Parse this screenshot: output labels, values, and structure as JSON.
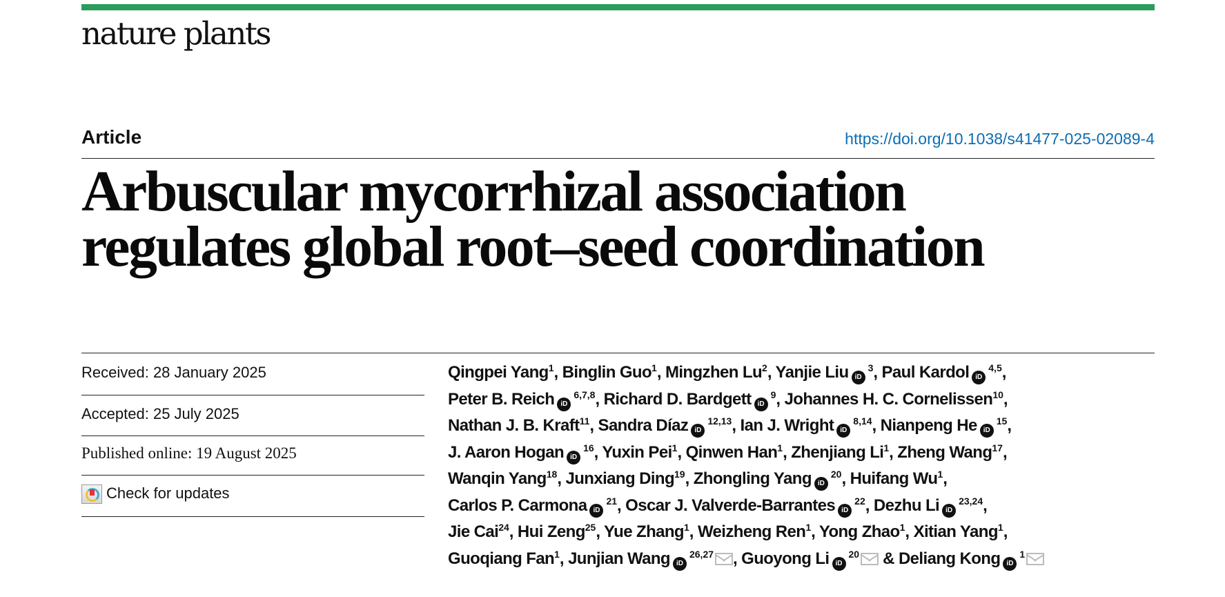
{
  "journal": {
    "name": "nature plants",
    "brand_color": "#2a9d5c"
  },
  "article_type": "Article",
  "doi": {
    "label": "https://doi.org/10.1038/s41477-025-02089-4",
    "color": "#0c6eb3"
  },
  "title": {
    "line1": "Arbuscular mycorrhizal association",
    "line2": "regulates global root–seed coordination"
  },
  "meta": {
    "received": "Received: 28 January 2025",
    "accepted": "Accepted: 25 July 2025",
    "published": "Published online: 19 August 2025",
    "check_updates": "Check for updates"
  },
  "orcid_label": "iD",
  "author_lines": [
    [
      {
        "name": "Qingpei Yang",
        "sup": "1",
        "after": ", "
      },
      {
        "name": "Binglin Guo",
        "sup": "1",
        "after": ", "
      },
      {
        "name": "Mingzhen Lu",
        "sup": "2",
        "after": ", "
      },
      {
        "name": "Yanjie Liu",
        "orcid": true,
        "sup": "3",
        "after": ", "
      },
      {
        "name": "Paul Kardol",
        "orcid": true,
        "sup": "4,5",
        "after": ","
      }
    ],
    [
      {
        "name": "Peter B. Reich",
        "orcid": true,
        "sup": "6,7,8",
        "after": ", "
      },
      {
        "name": "Richard D. Bardgett",
        "orcid": true,
        "sup": "9",
        "after": ", "
      },
      {
        "name": "Johannes H. C. Cornelissen",
        "sup": "10",
        "after": ","
      }
    ],
    [
      {
        "name": "Nathan J. B. Kraft",
        "sup": "11",
        "after": ", "
      },
      {
        "name": "Sandra Díaz",
        "orcid": true,
        "sup": "12,13",
        "after": ", "
      },
      {
        "name": "Ian J. Wright",
        "orcid": true,
        "sup": "8,14",
        "after": ", "
      },
      {
        "name": "Nianpeng He",
        "orcid": true,
        "sup": "15",
        "after": ","
      }
    ],
    [
      {
        "name": "J. Aaron Hogan",
        "orcid": true,
        "sup": "16",
        "after": ", "
      },
      {
        "name": "Yuxin Pei",
        "sup": "1",
        "after": ", "
      },
      {
        "name": "Qinwen Han",
        "sup": "1",
        "after": ", "
      },
      {
        "name": "Zhenjiang Li",
        "sup": "1",
        "after": ", "
      },
      {
        "name": "Zheng Wang",
        "sup": "17",
        "after": ","
      }
    ],
    [
      {
        "name": "Wanqin Yang",
        "sup": "18",
        "after": ", "
      },
      {
        "name": "Junxiang Ding",
        "sup": "19",
        "after": ", "
      },
      {
        "name": "Zhongling Yang",
        "orcid": true,
        "sup": "20",
        "after": ", "
      },
      {
        "name": "Huifang Wu",
        "sup": "1",
        "after": ","
      }
    ],
    [
      {
        "name": "Carlos P. Carmona",
        "orcid": true,
        "sup": "21",
        "after": ", "
      },
      {
        "name": "Oscar J. Valverde-Barrantes",
        "orcid": true,
        "sup": "22",
        "after": ", "
      },
      {
        "name": "Dezhu Li",
        "orcid": true,
        "sup": "23,24",
        "after": ","
      }
    ],
    [
      {
        "name": "Jie Cai",
        "sup": "24",
        "after": ", "
      },
      {
        "name": "Hui Zeng",
        "sup": "25",
        "after": ", "
      },
      {
        "name": "Yue Zhang",
        "sup": "1",
        "after": ", "
      },
      {
        "name": "Weizheng Ren",
        "sup": "1",
        "after": ", "
      },
      {
        "name": "Yong Zhao",
        "sup": "1",
        "after": ", "
      },
      {
        "name": "Xitian Yang",
        "sup": "1",
        "after": ","
      }
    ],
    [
      {
        "name": "Guoqiang Fan",
        "sup": "1",
        "after": ", "
      },
      {
        "name": "Junjian Wang",
        "orcid": true,
        "sup": "26,27",
        "email": true,
        "after": ", "
      },
      {
        "name": "Guoyong Li",
        "orcid": true,
        "sup": "20",
        "email": true,
        "after": " & "
      },
      {
        "name": "Deliang Kong",
        "orcid": true,
        "sup": "1",
        "email": true,
        "after": ""
      }
    ]
  ]
}
